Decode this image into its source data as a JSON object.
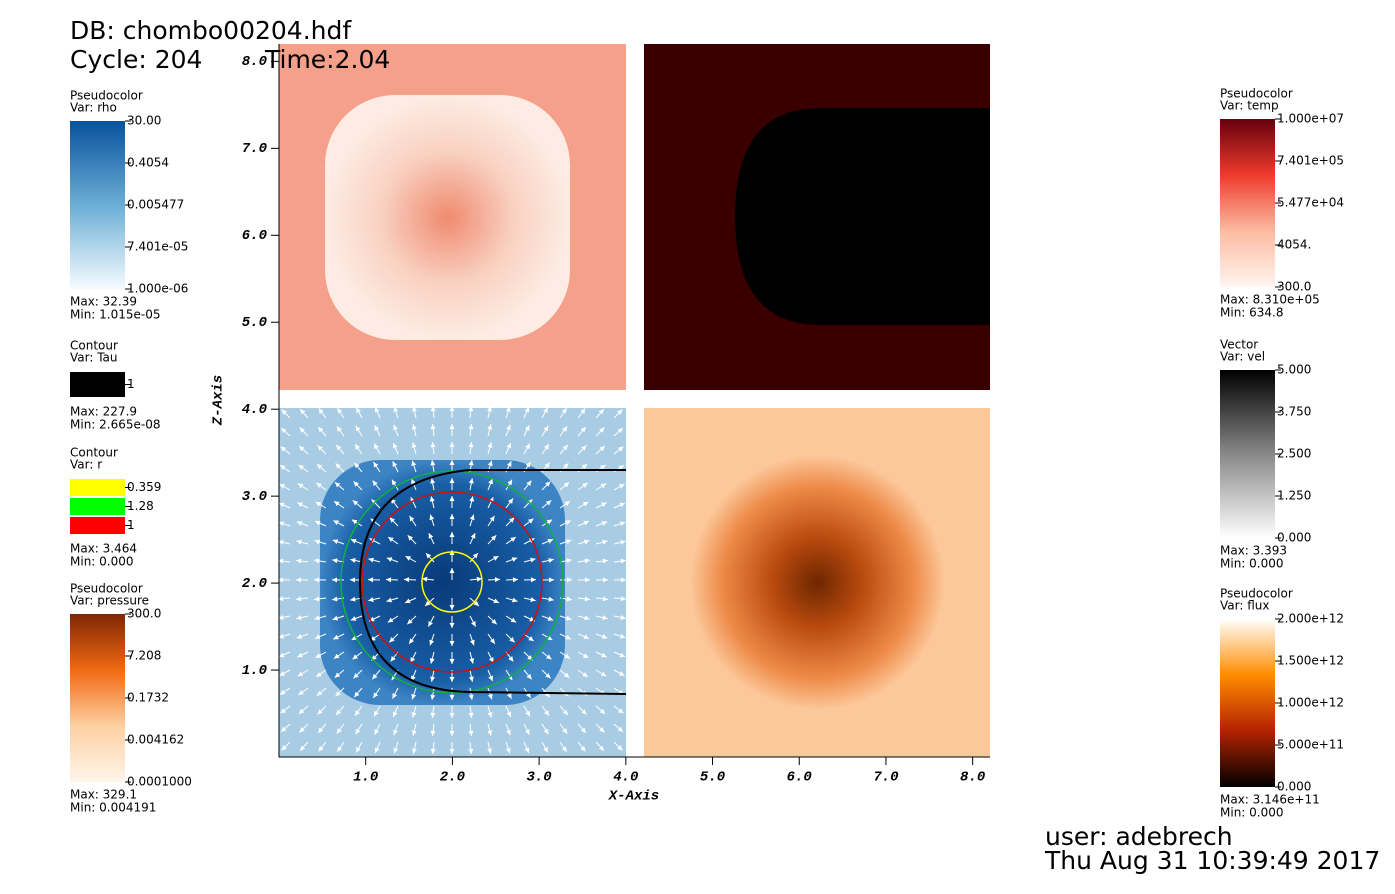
{
  "header": {
    "db": "DB: chombo00204.hdf",
    "cycle": "Cycle: 204",
    "time": "Time:2.04"
  },
  "chart_data": {
    "type": "field",
    "x_label": "X-Axis",
    "y_label": "Z-Axis",
    "xlim": [
      0,
      8.2
    ],
    "ylim": [
      0,
      8.2
    ],
    "xticks": [
      {
        "value": 1,
        "label": "1.0"
      },
      {
        "value": 2,
        "label": "2.0"
      },
      {
        "value": 3,
        "label": "3.0"
      },
      {
        "value": 4,
        "label": "4.0"
      },
      {
        "value": 5,
        "label": "5.0"
      },
      {
        "value": 6,
        "label": "6.0"
      },
      {
        "value": 7,
        "label": "7.0"
      },
      {
        "value": 8,
        "label": "8.0"
      }
    ],
    "yticks": [
      {
        "value": 1,
        "label": "1.0"
      },
      {
        "value": 2,
        "label": "2.0"
      },
      {
        "value": 3,
        "label": "3.0"
      },
      {
        "value": 4,
        "label": "4.0"
      },
      {
        "value": 5,
        "label": "5.0"
      },
      {
        "value": 6,
        "label": "6.0"
      },
      {
        "value": 7,
        "label": "7.0"
      },
      {
        "value": 8,
        "label": "8.0"
      }
    ]
  },
  "legends": [
    {
      "title": "Pseudocolor",
      "var": "Var: rho",
      "stops": [
        "#08519c",
        "#6baed6",
        "#f7fbff"
      ],
      "ticks": [
        "30.00",
        "0.4054",
        "0.005477",
        "7.401e-05",
        "1.000e-06"
      ],
      "max": "Max:  32.39",
      "min": "Min:  1.015e-05"
    },
    {
      "title": "Contour",
      "var": "Var: Tau",
      "swatches": [
        {
          "color": "#000000",
          "label": "1"
        }
      ],
      "max": "Max:  227.9",
      "min": "Min:  2.665e-08"
    },
    {
      "title": "Contour",
      "var": "Var: r",
      "swatches": [
        {
          "color": "#ffff00",
          "label": "0.359"
        },
        {
          "color": "#00ff00",
          "label": "1.28"
        },
        {
          "color": "#ff0000",
          "label": "1"
        }
      ],
      "max": "Max:  3.464",
      "min": "Min:  0.000"
    },
    {
      "title": "Pseudocolor",
      "var": "Var: pressure",
      "stops": [
        "#7f2704",
        "#f16913",
        "#fdd0a2",
        "#fff5eb"
      ],
      "ticks": [
        "300.0",
        "7.208",
        "0.1732",
        "0.004162",
        "0.0001000"
      ],
      "max": "Max:  329.1",
      "min": "Min:  0.004191"
    },
    {
      "title": "Pseudocolor",
      "var": "Var: temp",
      "stops": [
        "#67000d",
        "#ef3b2c",
        "#fcbba1",
        "#fff5f0"
      ],
      "ticks": [
        "1.000e+07",
        "7.401e+05",
        "5.477e+04",
        "4054.",
        "300.0"
      ],
      "max": "Max:  8.310e+05",
      "min": "Min:  634.8"
    },
    {
      "title": "Vector",
      "var": "Var: vel",
      "stops": [
        "#000000",
        "#888888",
        "#ffffff"
      ],
      "ticks": [
        "5.000",
        "3.750",
        "2.500",
        "1.250",
        "0.000"
      ],
      "max": "Max:  3.393",
      "min": "Min:  0.000"
    },
    {
      "title": "Pseudocolor",
      "var": "Var: flux",
      "stops": [
        "#ffffff",
        "#ff8c00",
        "#b22200",
        "#000000"
      ],
      "ticks": [
        "2.000e+12",
        "1.500e+12",
        "1.000e+12",
        "5.000e+11",
        "0.000"
      ],
      "max": "Max:  3.146e+11",
      "min": "Min:  0.000"
    }
  ],
  "footer": {
    "user": "user: adebrech",
    "date": "Thu Aug 31 10:39:49 2017"
  }
}
